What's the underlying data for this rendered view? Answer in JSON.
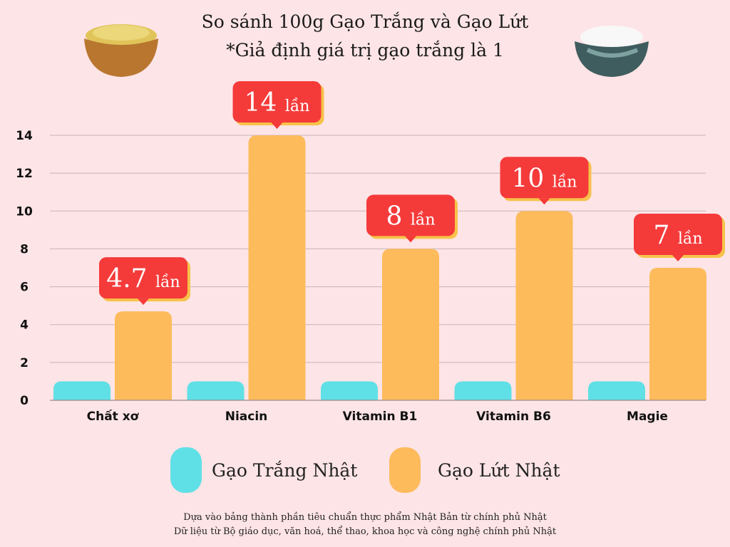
{
  "chart_data": {
    "type": "bar",
    "title": "So sánh 100g Gạo Trắng và Gạo Lứt",
    "subtitle": "*Giả định giá trị gạo trắng là 1",
    "categories": [
      "Chất xơ",
      "Niacin",
      "Vitamin B1",
      "Vitamin B6",
      "Magie"
    ],
    "series": [
      {
        "name": "Gạo Trắng Nhật",
        "color": "#5fe0e6",
        "values": [
          1,
          1,
          1,
          1,
          1
        ]
      },
      {
        "name": "Gạo Lứt Nhật",
        "color": "#fdbb5c",
        "values": [
          4.7,
          14,
          8,
          10,
          7
        ]
      }
    ],
    "annotations": [
      {
        "value": "4.7",
        "unit": "lần"
      },
      {
        "value": "14",
        "unit": "lần"
      },
      {
        "value": "8",
        "unit": "lần"
      },
      {
        "value": "10",
        "unit": "lần"
      },
      {
        "value": "7",
        "unit": "lần"
      }
    ],
    "yticks": [
      0,
      2,
      4,
      6,
      8,
      10,
      12,
      14
    ],
    "ylim": [
      0,
      14
    ],
    "grid": true,
    "legend": "bottom",
    "annotation_color": "#f53a3a"
  },
  "footer": {
    "line1": "Dựa vào bảng thành phần tiêu chuẩn thực phẩm Nhật Bản từ chính phủ Nhật",
    "line2": "Dữ liệu từ Bộ giáo dục, văn hoá, thể thao, khoa học và công nghệ chính phủ Nhật"
  }
}
